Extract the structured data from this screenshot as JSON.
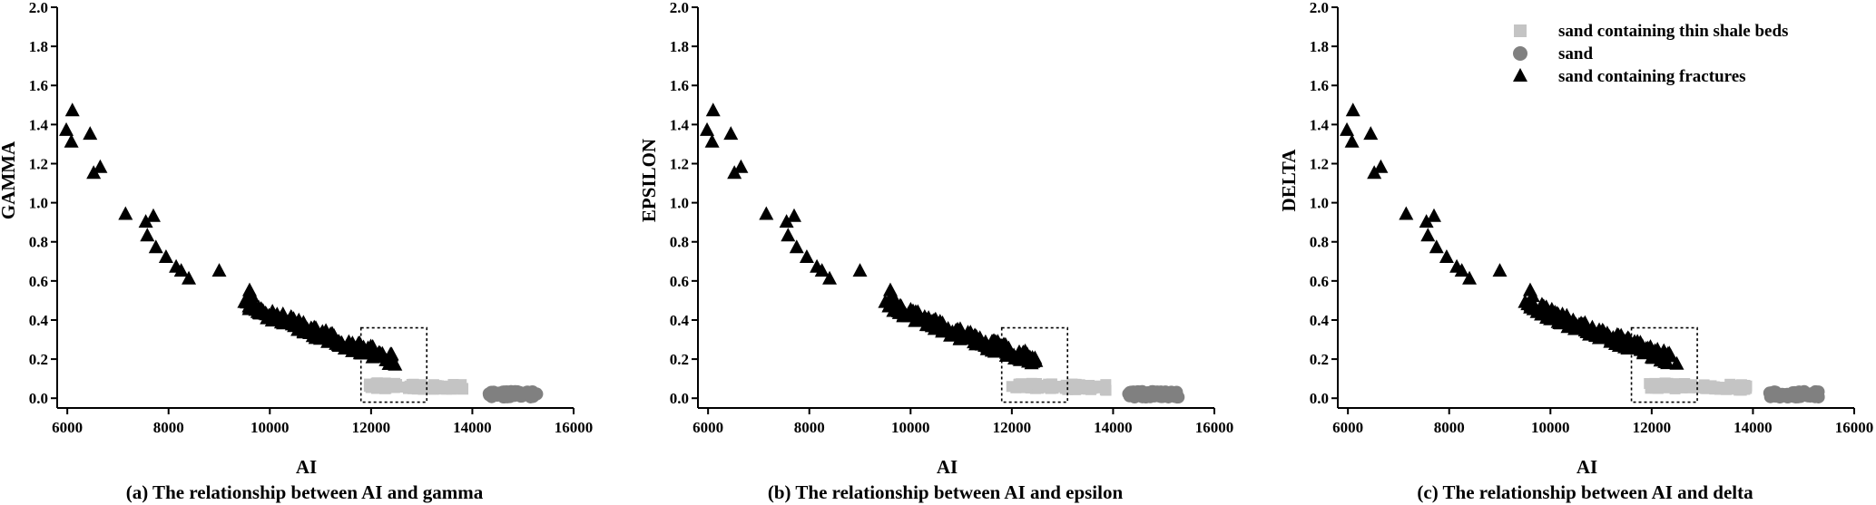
{
  "colors": {
    "sand_containing_thin_shale_beds": "#c4c4c4",
    "sand": "#808080",
    "sand_containing_fractures": "#000000"
  },
  "legend": [
    {
      "label": "sand containing thin shale beds",
      "marker": "square",
      "color": "#c4c4c4"
    },
    {
      "label": "sand",
      "marker": "circle",
      "color": "#808080"
    },
    {
      "label": "sand containing  fractures",
      "marker": "triangle",
      "color": "#000000"
    }
  ],
  "chart_data": [
    {
      "type": "scatter",
      "caption": "(a) The relationship between AI and gamma",
      "xlabel": "AI",
      "ylabel": "GAMMA",
      "xlim": [
        5800,
        16000
      ],
      "ylim": [
        -0.05,
        2.0
      ],
      "xticks": [
        "6000",
        "8000",
        "10000",
        "12000",
        "14000",
        "16000"
      ],
      "yticks": [
        "0.0",
        "0.2",
        "0.4",
        "0.6",
        "0.8",
        "1.0",
        "1.2",
        "1.4",
        "1.6",
        "1.8",
        "2.0"
      ],
      "highlight_box": {
        "x": [
          11800,
          13100
        ],
        "y": [
          -0.02,
          0.36
        ]
      },
      "legend_shown": false,
      "series": [
        {
          "name": "sand containing thin shale beds",
          "marker": "square",
          "x_range": [
            11950,
            13900
          ],
          "y_center": 0.065,
          "y_spread": 0.03
        },
        {
          "name": "sand",
          "marker": "circle",
          "x_range": [
            14300,
            15300
          ],
          "y_center": 0.02,
          "y_spread": 0.03
        },
        {
          "name": "sand containing  fractures",
          "marker": "triangle",
          "points": [
            [
              5980,
              1.37
            ],
            [
              6100,
              1.47
            ],
            [
              6080,
              1.31
            ],
            [
              6450,
              1.35
            ],
            [
              6520,
              1.15
            ],
            [
              6650,
              1.18
            ],
            [
              7150,
              0.94
            ],
            [
              7550,
              0.9
            ],
            [
              7700,
              0.93
            ],
            [
              7580,
              0.83
            ],
            [
              7750,
              0.77
            ],
            [
              7950,
              0.72
            ],
            [
              8150,
              0.67
            ],
            [
              8250,
              0.65
            ],
            [
              8400,
              0.61
            ],
            [
              9000,
              0.65
            ],
            [
              9500,
              0.49
            ],
            [
              9600,
              0.55
            ],
            [
              9650,
              0.52
            ]
          ],
          "dense_band": {
            "x_range": [
              9550,
              12500
            ],
            "y_start": 0.49,
            "y_end": 0.19
          }
        }
      ]
    },
    {
      "type": "scatter",
      "caption": "(b) The relationship between AI and epsilon",
      "xlabel": "AI",
      "ylabel": "EPSILON",
      "xlim": [
        5800,
        16000
      ],
      "ylim": [
        -0.05,
        2.0
      ],
      "xticks": [
        "6000",
        "8000",
        "10000",
        "12000",
        "14000",
        "16000"
      ],
      "yticks": [
        "0.0",
        "0.2",
        "0.4",
        "0.6",
        "0.8",
        "1.0",
        "1.2",
        "1.4",
        "1.6",
        "1.8",
        "2.0"
      ],
      "highlight_box": {
        "x": [
          11800,
          13100
        ],
        "y": [
          -0.02,
          0.36
        ]
      },
      "legend_shown": false,
      "series": [
        {
          "name": "sand containing thin shale beds",
          "marker": "square",
          "x_range": [
            11950,
            13900
          ],
          "y_center": 0.065,
          "y_spread": 0.03
        },
        {
          "name": "sand",
          "marker": "circle",
          "x_range": [
            14300,
            15300
          ],
          "y_center": 0.02,
          "y_spread": 0.03
        },
        {
          "name": "sand containing  fractures",
          "marker": "triangle",
          "points": [
            [
              5980,
              1.37
            ],
            [
              6100,
              1.47
            ],
            [
              6080,
              1.31
            ],
            [
              6450,
              1.35
            ],
            [
              6520,
              1.15
            ],
            [
              6650,
              1.18
            ],
            [
              7150,
              0.94
            ],
            [
              7550,
              0.9
            ],
            [
              7700,
              0.93
            ],
            [
              7580,
              0.83
            ],
            [
              7750,
              0.77
            ],
            [
              7950,
              0.72
            ],
            [
              8150,
              0.67
            ],
            [
              8250,
              0.65
            ],
            [
              8400,
              0.61
            ],
            [
              9000,
              0.65
            ],
            [
              9500,
              0.49
            ],
            [
              9600,
              0.55
            ],
            [
              9650,
              0.52
            ]
          ],
          "dense_band": {
            "x_range": [
              9550,
              12500
            ],
            "y_start": 0.49,
            "y_end": 0.19
          }
        }
      ]
    },
    {
      "type": "scatter",
      "caption": "(c) The relationship between AI and delta",
      "xlabel": "AI",
      "ylabel": "DELTA",
      "xlim": [
        5800,
        16000
      ],
      "ylim": [
        -0.05,
        2.0
      ],
      "xticks": [
        "6000",
        "8000",
        "10000",
        "12000",
        "14000",
        "16000"
      ],
      "yticks": [
        "0.0",
        "0.2",
        "0.4",
        "0.6",
        "0.8",
        "1.0",
        "1.2",
        "1.4",
        "1.6",
        "1.8",
        "2.0"
      ],
      "highlight_box": {
        "x": [
          11600,
          12900
        ],
        "y": [
          -0.02,
          0.36
        ]
      },
      "legend_shown": true,
      "series": [
        {
          "name": "sand containing thin shale beds",
          "marker": "square",
          "x_range": [
            11950,
            13900
          ],
          "y_center": 0.065,
          "y_spread": 0.03
        },
        {
          "name": "sand",
          "marker": "circle",
          "x_range": [
            14300,
            15300
          ],
          "y_center": 0.02,
          "y_spread": 0.03
        },
        {
          "name": "sand containing  fractures",
          "marker": "triangle",
          "points": [
            [
              5980,
              1.37
            ],
            [
              6100,
              1.47
            ],
            [
              6080,
              1.31
            ],
            [
              6450,
              1.35
            ],
            [
              6520,
              1.15
            ],
            [
              6650,
              1.18
            ],
            [
              7150,
              0.94
            ],
            [
              7550,
              0.9
            ],
            [
              7700,
              0.93
            ],
            [
              7580,
              0.83
            ],
            [
              7750,
              0.77
            ],
            [
              7950,
              0.72
            ],
            [
              8150,
              0.67
            ],
            [
              8250,
              0.65
            ],
            [
              8400,
              0.61
            ],
            [
              9000,
              0.65
            ],
            [
              9500,
              0.49
            ],
            [
              9600,
              0.55
            ],
            [
              9650,
              0.52
            ]
          ],
          "dense_band": {
            "x_range": [
              9550,
              12500
            ],
            "y_start": 0.49,
            "y_end": 0.19
          }
        }
      ]
    }
  ]
}
